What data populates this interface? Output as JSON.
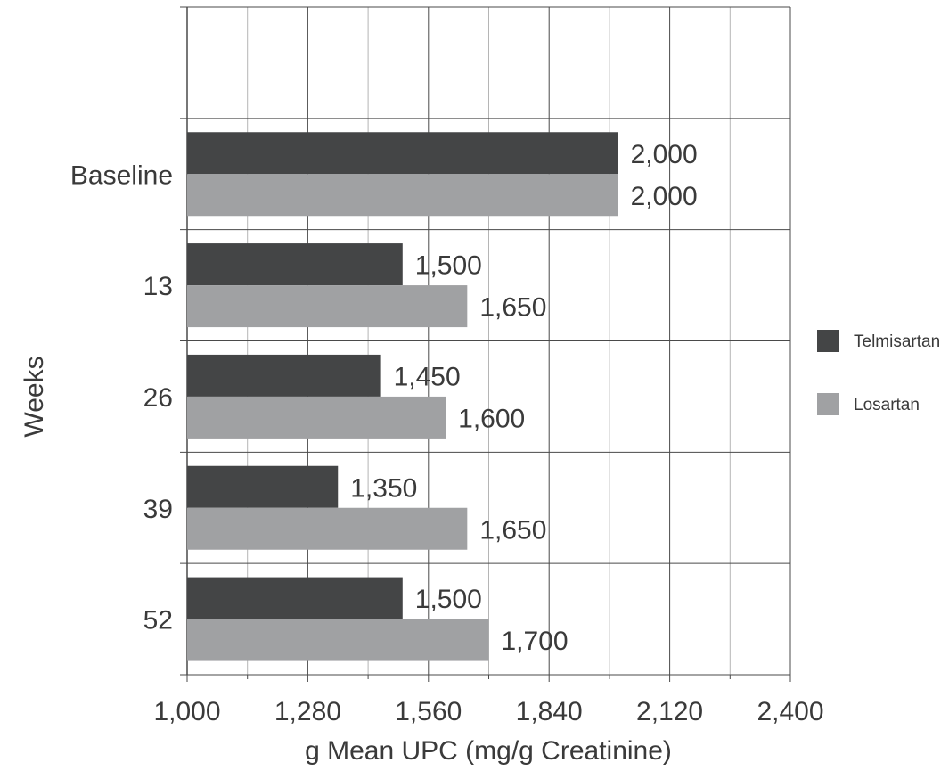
{
  "chart_data": {
    "type": "bar",
    "orientation": "horizontal",
    "categories": [
      "Baseline",
      "13",
      "26",
      "39",
      "52"
    ],
    "series": [
      {
        "name": "Telmisartan",
        "color": "#444546",
        "values": [
          2000,
          1500,
          1450,
          1350,
          1500
        ],
        "labels": [
          "2,000",
          "1,500",
          "1,450",
          "1,350",
          "1,500"
        ]
      },
      {
        "name": "Losartan",
        "color": "#a0a1a3",
        "values": [
          2000,
          1650,
          1600,
          1650,
          1700
        ],
        "labels": [
          "2,000",
          "1,650",
          "1,600",
          "1,650",
          "1,700"
        ]
      }
    ],
    "xlabel": "g Mean UPC (mg/g Creatinine)",
    "ylabel": "Weeks",
    "xlim": [
      1000,
      2400
    ],
    "xticks": [
      1000,
      1280,
      1560,
      1840,
      2120,
      2400
    ],
    "xtick_labels": [
      "1,000",
      "1,280",
      "1,560",
      "1,840",
      "2,120",
      "2,400"
    ],
    "grid": true,
    "legend": "right",
    "empty_top_row": true
  }
}
